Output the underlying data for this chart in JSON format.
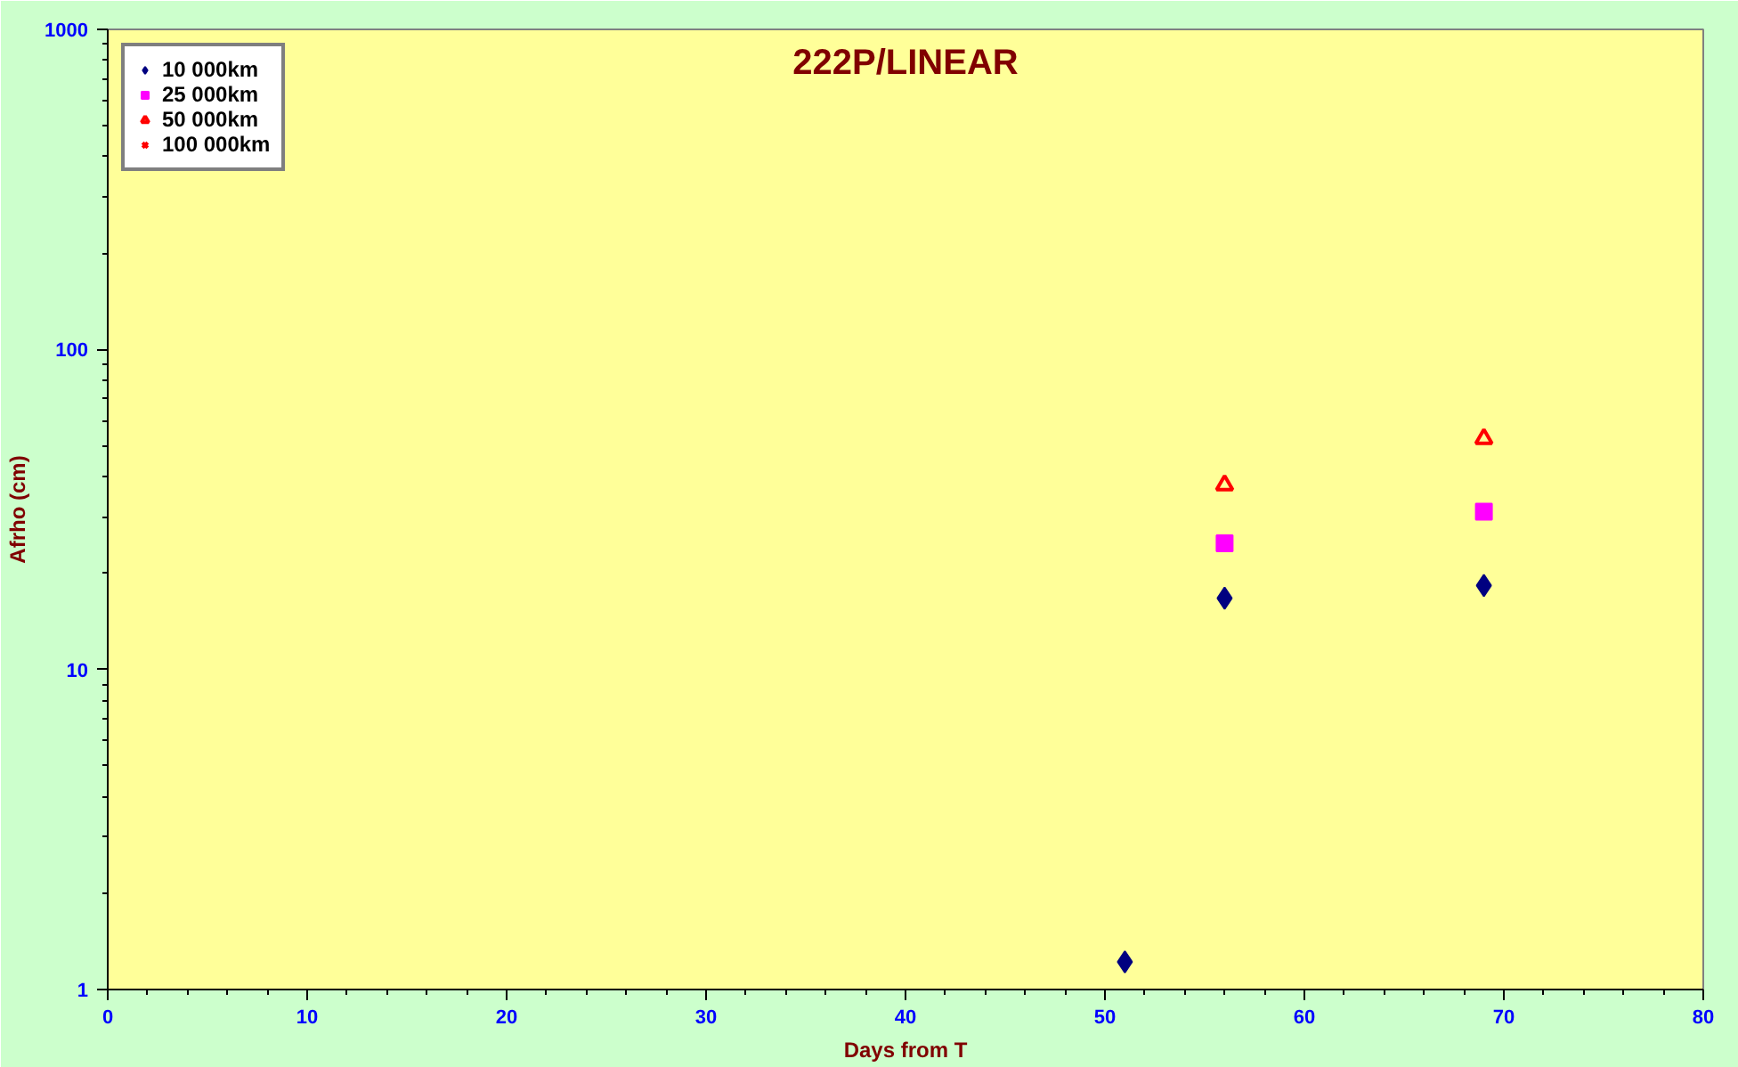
{
  "chart_data": {
    "type": "scatter",
    "title": "222P/LINEAR",
    "xlabel": "Days from T",
    "ylabel": "Afrho (cm)",
    "log": "y",
    "xlim": [
      0,
      80
    ],
    "xticks": [
      0,
      10,
      20,
      30,
      40,
      50,
      60,
      70,
      80
    ],
    "ylim": [
      1,
      1000
    ],
    "yticks": [
      1,
      10,
      100,
      1000
    ],
    "grid": false,
    "legend": "top left",
    "series": [
      {
        "name": "10 000km",
        "color": "#000080",
        "marker": "diamond",
        "x": [
          51,
          56,
          69
        ],
        "values": [
          1.22,
          16.7,
          18.3
        ]
      },
      {
        "name": "25 000km",
        "color": "#ff00ff",
        "marker": "square",
        "x": [
          56,
          69
        ],
        "values": [
          24.8,
          31.1
        ]
      },
      {
        "name": "50 000km",
        "color": "#ff0000",
        "marker": "triangle",
        "x": [
          56,
          69
        ],
        "values": [
          37.7,
          52.6
        ]
      },
      {
        "name": "100 000km",
        "color": "#ff0000",
        "marker": "cross"
      }
    ]
  }
}
